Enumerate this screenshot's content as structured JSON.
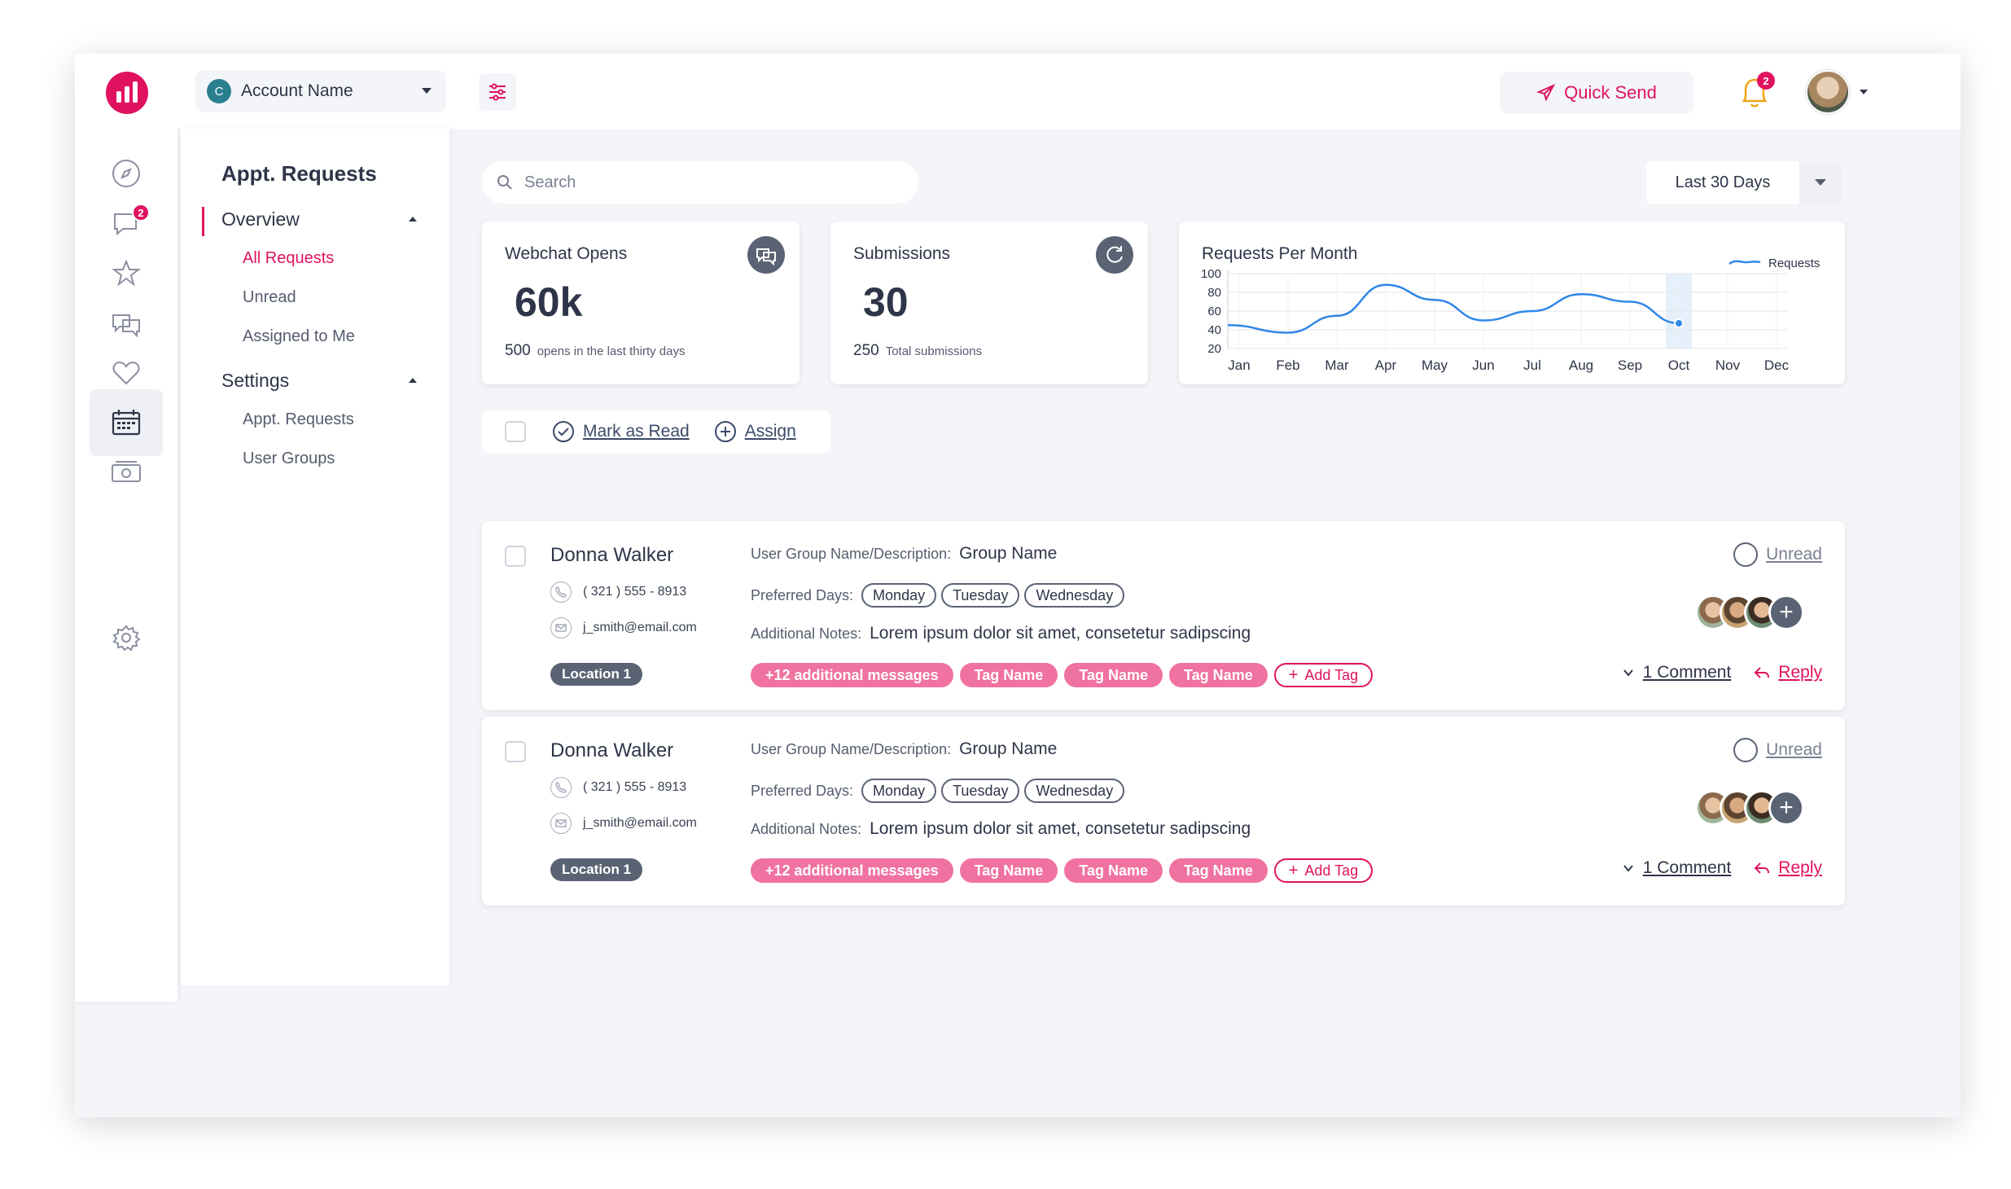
{
  "account": {
    "initial": "C",
    "name": "Account Name"
  },
  "topbar": {
    "quick_send": "Quick Send",
    "notification_count": "2"
  },
  "rail": {
    "messages_badge": "2"
  },
  "subnav": {
    "title": "Appt. Requests",
    "overview": {
      "label": "Overview",
      "items": [
        "All Requests",
        "Unread",
        "Assigned to Me"
      ]
    },
    "settings": {
      "label": "Settings",
      "items": [
        "Appt. Requests",
        "User Groups"
      ]
    }
  },
  "search": {
    "placeholder": "Search"
  },
  "date_range": {
    "selected": "Last 30 Days"
  },
  "stats": [
    {
      "title": "Webchat Opens",
      "value": "60k",
      "foot_num": "500",
      "foot_text": "opens in the last thirty days"
    },
    {
      "title": "Submissions",
      "value": "30",
      "foot_num": "250",
      "foot_text": "Total submissions"
    }
  ],
  "chart_data": {
    "type": "line",
    "title": "Requests Per Month",
    "categories": [
      "Jan",
      "Feb",
      "Mar",
      "Apr",
      "May",
      "Jun",
      "Jul",
      "Aug",
      "Sep",
      "Oct",
      "Nov",
      "Dec"
    ],
    "series": [
      {
        "name": "Requests",
        "values": [
          45,
          37,
          55,
          88,
          72,
          50,
          60,
          78,
          70,
          47,
          null,
          null
        ]
      }
    ],
    "yticks": [
      100,
      80,
      60,
      40,
      20
    ],
    "ylim": [
      20,
      100
    ],
    "highlight": "Oct",
    "legend": "top-right",
    "grid": true
  },
  "bulk": {
    "mark_read": "Mark as Read",
    "assign": "Assign"
  },
  "labels": {
    "group": "User Group Name/Description:",
    "days": "Preferred Days:",
    "notes": "Additional Notes:",
    "unread": "Unread",
    "reply": "Reply",
    "add_tag": "Add Tag"
  },
  "requests": [
    {
      "name": "Donna Walker",
      "phone": "( 321 ) 555 - 8913",
      "email": "j_smith@email.com",
      "location": "Location 1",
      "group": "Group Name",
      "days": [
        "Monday",
        "Tuesday",
        "Wednesday"
      ],
      "notes": "Lorem ipsum dolor sit amet, consetetur sadipscing",
      "tags": [
        "+12 additional messages",
        "Tag Name",
        "Tag Name",
        "Tag Name"
      ],
      "comments": "1 Comment"
    },
    {
      "name": "Donna Walker",
      "phone": "( 321 ) 555 - 8913",
      "email": "j_smith@email.com",
      "location": "Location 1",
      "group": "Group Name",
      "days": [
        "Monday",
        "Tuesday",
        "Wednesday"
      ],
      "notes": "Lorem ipsum dolor sit amet, consetetur sadipscing",
      "tags": [
        "+12 additional messages",
        "Tag Name",
        "Tag Name",
        "Tag Name"
      ],
      "comments": "1 Comment"
    }
  ],
  "colors": {
    "accent": "#e0125f",
    "tag": "#f072a0",
    "slate": "#5a6374",
    "line": "#2f86e8"
  }
}
